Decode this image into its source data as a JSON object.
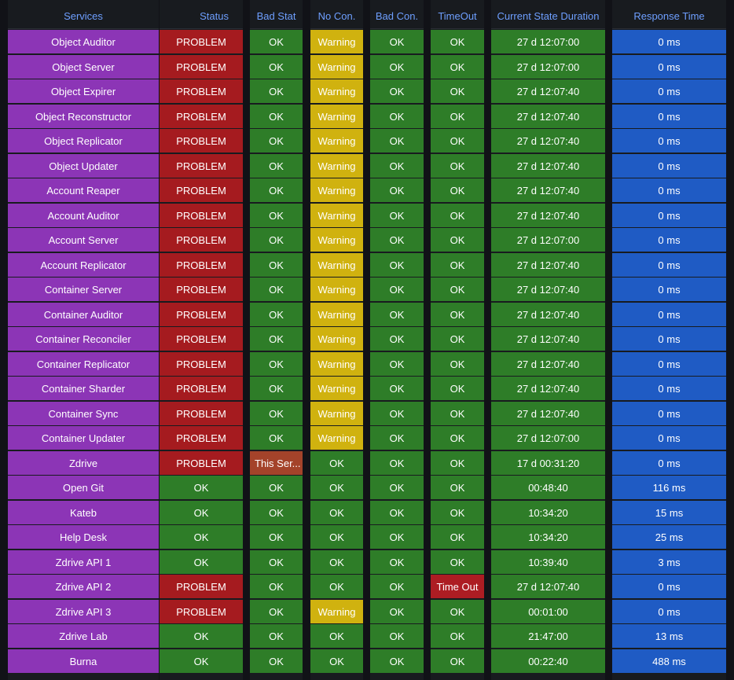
{
  "table": {
    "columns": [
      {
        "key": "service",
        "label": "Services"
      },
      {
        "key": "status",
        "label": "Status"
      },
      {
        "key": "bad_stat",
        "label": "Bad Stat"
      },
      {
        "key": "no_con",
        "label": "No Con."
      },
      {
        "key": "bad_con",
        "label": "Bad Con."
      },
      {
        "key": "timeout",
        "label": "TimeOut"
      },
      {
        "key": "duration",
        "label": "Current State Duration"
      },
      {
        "key": "response",
        "label": "Response Time"
      }
    ],
    "rows": [
      {
        "service": "Object Auditor",
        "status": "PROBLEM",
        "bad_stat": "OK",
        "no_con": "Warning",
        "bad_con": "OK",
        "timeout": "OK",
        "duration": "27 d 12:07:00",
        "response": "0 ms"
      },
      {
        "service": "Object Server",
        "status": "PROBLEM",
        "bad_stat": "OK",
        "no_con": "Warning",
        "bad_con": "OK",
        "timeout": "OK",
        "duration": "27 d 12:07:00",
        "response": "0 ms"
      },
      {
        "service": "Object Expirer",
        "status": "PROBLEM",
        "bad_stat": "OK",
        "no_con": "Warning",
        "bad_con": "OK",
        "timeout": "OK",
        "duration": "27 d 12:07:40",
        "response": "0 ms"
      },
      {
        "service": "Object Reconstructor",
        "status": "PROBLEM",
        "bad_stat": "OK",
        "no_con": "Warning",
        "bad_con": "OK",
        "timeout": "OK",
        "duration": "27 d 12:07:40",
        "response": "0 ms"
      },
      {
        "service": "Object Replicator",
        "status": "PROBLEM",
        "bad_stat": "OK",
        "no_con": "Warning",
        "bad_con": "OK",
        "timeout": "OK",
        "duration": "27 d 12:07:40",
        "response": "0 ms"
      },
      {
        "service": "Object Updater",
        "status": "PROBLEM",
        "bad_stat": "OK",
        "no_con": "Warning",
        "bad_con": "OK",
        "timeout": "OK",
        "duration": "27 d 12:07:40",
        "response": "0 ms"
      },
      {
        "service": "Account Reaper",
        "status": "PROBLEM",
        "bad_stat": "OK",
        "no_con": "Warning",
        "bad_con": "OK",
        "timeout": "OK",
        "duration": "27 d 12:07:40",
        "response": "0 ms"
      },
      {
        "service": "Account Auditor",
        "status": "PROBLEM",
        "bad_stat": "OK",
        "no_con": "Warning",
        "bad_con": "OK",
        "timeout": "OK",
        "duration": "27 d 12:07:40",
        "response": "0 ms"
      },
      {
        "service": "Account Server",
        "status": "PROBLEM",
        "bad_stat": "OK",
        "no_con": "Warning",
        "bad_con": "OK",
        "timeout": "OK",
        "duration": "27 d 12:07:00",
        "response": "0 ms"
      },
      {
        "service": "Account Replicator",
        "status": "PROBLEM",
        "bad_stat": "OK",
        "no_con": "Warning",
        "bad_con": "OK",
        "timeout": "OK",
        "duration": "27 d 12:07:40",
        "response": "0 ms"
      },
      {
        "service": "Container Server",
        "status": "PROBLEM",
        "bad_stat": "OK",
        "no_con": "Warning",
        "bad_con": "OK",
        "timeout": "OK",
        "duration": "27 d 12:07:40",
        "response": "0 ms"
      },
      {
        "service": "Container Auditor",
        "status": "PROBLEM",
        "bad_stat": "OK",
        "no_con": "Warning",
        "bad_con": "OK",
        "timeout": "OK",
        "duration": "27 d 12:07:40",
        "response": "0 ms"
      },
      {
        "service": "Container Reconciler",
        "status": "PROBLEM",
        "bad_stat": "OK",
        "no_con": "Warning",
        "bad_con": "OK",
        "timeout": "OK",
        "duration": "27 d 12:07:40",
        "response": "0 ms"
      },
      {
        "service": "Container Replicator",
        "status": "PROBLEM",
        "bad_stat": "OK",
        "no_con": "Warning",
        "bad_con": "OK",
        "timeout": "OK",
        "duration": "27 d 12:07:40",
        "response": "0 ms"
      },
      {
        "service": "Container Sharder",
        "status": "PROBLEM",
        "bad_stat": "OK",
        "no_con": "Warning",
        "bad_con": "OK",
        "timeout": "OK",
        "duration": "27 d 12:07:40",
        "response": "0 ms"
      },
      {
        "service": "Container Sync",
        "status": "PROBLEM",
        "bad_stat": "OK",
        "no_con": "Warning",
        "bad_con": "OK",
        "timeout": "OK",
        "duration": "27 d 12:07:40",
        "response": "0 ms"
      },
      {
        "service": "Container Updater",
        "status": "PROBLEM",
        "bad_stat": "OK",
        "no_con": "Warning",
        "bad_con": "OK",
        "timeout": "OK",
        "duration": "27 d 12:07:00",
        "response": "0 ms"
      },
      {
        "service": "Zdrive",
        "status": "PROBLEM",
        "bad_stat": "This Ser...",
        "no_con": "OK",
        "bad_con": "OK",
        "timeout": "OK",
        "duration": "17 d 00:31:20",
        "response": "0 ms"
      },
      {
        "service": "Open Git",
        "status": "OK",
        "bad_stat": "OK",
        "no_con": "OK",
        "bad_con": "OK",
        "timeout": "OK",
        "duration": "00:48:40",
        "response": "116 ms"
      },
      {
        "service": "Kateb",
        "status": "OK",
        "bad_stat": "OK",
        "no_con": "OK",
        "bad_con": "OK",
        "timeout": "OK",
        "duration": "10:34:20",
        "response": "15 ms"
      },
      {
        "service": "Help Desk",
        "status": "OK",
        "bad_stat": "OK",
        "no_con": "OK",
        "bad_con": "OK",
        "timeout": "OK",
        "duration": "10:34:20",
        "response": "25 ms"
      },
      {
        "service": "Zdrive API 1",
        "status": "OK",
        "bad_stat": "OK",
        "no_con": "OK",
        "bad_con": "OK",
        "timeout": "OK",
        "duration": "10:39:40",
        "response": "3 ms"
      },
      {
        "service": "Zdrive API 2",
        "status": "PROBLEM",
        "bad_stat": "OK",
        "no_con": "OK",
        "bad_con": "OK",
        "timeout": "Time Out",
        "duration": "27 d 12:07:40",
        "response": "0 ms"
      },
      {
        "service": "Zdrive API 3",
        "status": "PROBLEM",
        "bad_stat": "OK",
        "no_con": "Warning",
        "bad_con": "OK",
        "timeout": "OK",
        "duration": "00:01:00",
        "response": "0 ms"
      },
      {
        "service": "Zdrive Lab",
        "status": "OK",
        "bad_stat": "OK",
        "no_con": "OK",
        "bad_con": "OK",
        "timeout": "OK",
        "duration": "21:47:00",
        "response": "13 ms"
      },
      {
        "service": "Burna",
        "status": "OK",
        "bad_stat": "OK",
        "no_con": "OK",
        "bad_con": "OK",
        "timeout": "OK",
        "duration": "00:22:40",
        "response": "488 ms"
      }
    ]
  },
  "colors": {
    "service_bg": "#8c35b6",
    "problem": "#a51b1f",
    "ok": "#2e7d28",
    "warning": "#d0b20f",
    "error_text": "#a4432a",
    "timeout": "#ad1d23",
    "response": "#1f5bc4",
    "header_text": "#6e9fff"
  }
}
